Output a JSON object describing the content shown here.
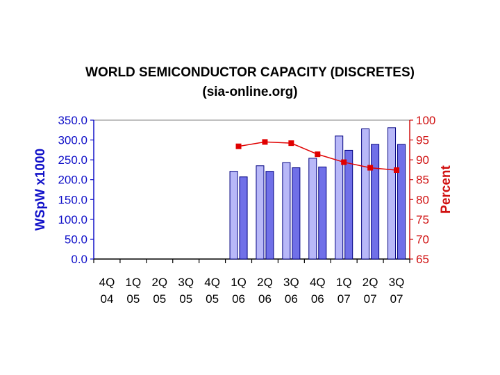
{
  "chart_data": {
    "type": "bar",
    "title": "WORLD SEMICONDUCTOR CAPACITY (DISCRETES)",
    "subtitle": "(sia-online.org)",
    "categories": [
      [
        "4Q",
        "04"
      ],
      [
        "1Q",
        "05"
      ],
      [
        "2Q",
        "05"
      ],
      [
        "3Q",
        "05"
      ],
      [
        "4Q",
        "05"
      ],
      [
        "1Q",
        "06"
      ],
      [
        "2Q",
        "06"
      ],
      [
        "3Q",
        "06"
      ],
      [
        "4Q",
        "06"
      ],
      [
        "1Q",
        "07"
      ],
      [
        "2Q",
        "07"
      ],
      [
        "3Q",
        "07"
      ]
    ],
    "ylabel": "WSpW x1000",
    "y2label": "Percent",
    "ylim": [
      0,
      350
    ],
    "y2lim": [
      65,
      100
    ],
    "yticks": [
      "0.0",
      "50.0",
      "100.0",
      "150.0",
      "200.0",
      "250.0",
      "300.0",
      "350.0"
    ],
    "y2ticks": [
      "65",
      "70",
      "75",
      "80",
      "85",
      "90",
      "95",
      "100"
    ],
    "series": [
      {
        "axis": "left",
        "kind": "bar",
        "color": "#b8b8f8",
        "values": [
          null,
          null,
          null,
          null,
          null,
          221,
          235,
          243,
          254,
          310,
          328,
          331
        ]
      },
      {
        "axis": "left",
        "kind": "bar",
        "color": "#7070e8",
        "values": [
          null,
          null,
          null,
          null,
          null,
          207,
          221,
          230,
          232,
          274,
          289,
          289
        ]
      },
      {
        "axis": "right",
        "kind": "line",
        "color": "#e00000",
        "values": [
          null,
          null,
          null,
          null,
          null,
          93.4,
          94.5,
          94.2,
          91.4,
          89.4,
          88.0,
          87.4
        ]
      }
    ],
    "grid": false,
    "colors": {
      "left_axis": "#1010c8",
      "right_axis": "#d01010",
      "bar_stroke": "#000080"
    }
  }
}
